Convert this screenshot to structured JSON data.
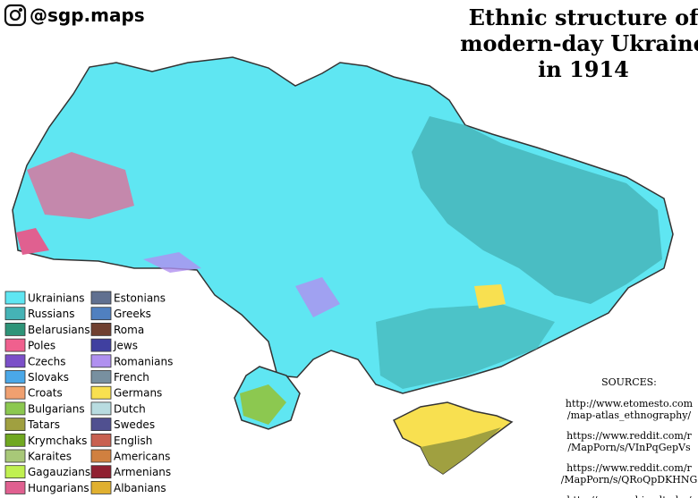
{
  "header": {
    "handle": "@sgp.maps",
    "title": [
      "Ethnic structure of",
      "modern-day Ukraine",
      "in 1914"
    ]
  },
  "legend": [
    {
      "name": "Ukrainians",
      "color": "#5fe6f2"
    },
    {
      "name": "Russians",
      "color": "#45b3b6"
    },
    {
      "name": "Belarusians",
      "color": "#2e9478"
    },
    {
      "name": "Poles",
      "color": "#f0608e"
    },
    {
      "name": "Czechs",
      "color": "#7b4fc8"
    },
    {
      "name": "Slovaks",
      "color": "#4aa8e8"
    },
    {
      "name": "Croats",
      "color": "#f0a070"
    },
    {
      "name": "Bulgarians",
      "color": "#8cc850"
    },
    {
      "name": "Tatars",
      "color": "#a0a040"
    },
    {
      "name": "Krymchaks",
      "color": "#70a820"
    },
    {
      "name": "Karaites",
      "color": "#a8c878"
    },
    {
      "name": "Gagauzians",
      "color": "#c0f050"
    },
    {
      "name": "Hungarians",
      "color": "#e06090"
    },
    {
      "name": "Estonians",
      "color": "#607090"
    },
    {
      "name": "Greeks",
      "color": "#5080c0"
    },
    {
      "name": "Roma",
      "color": "#704030"
    },
    {
      "name": "Jews",
      "color": "#4040a0"
    },
    {
      "name": "Romanians",
      "color": "#b090f0"
    },
    {
      "name": "French",
      "color": "#7890a0"
    },
    {
      "name": "Germans",
      "color": "#f8e050"
    },
    {
      "name": "Dutch",
      "color": "#b8dce0"
    },
    {
      "name": "Swedes",
      "color": "#505090"
    },
    {
      "name": "English",
      "color": "#c86050"
    },
    {
      "name": "Americans",
      "color": "#d08040"
    },
    {
      "name": "Armenians",
      "color": "#902030"
    },
    {
      "name": "Albanians",
      "color": "#e0b030"
    }
  ],
  "sources": {
    "heading": "SOURCES:",
    "items": [
      [
        "http://www.etomesto.com",
        "/map-atlas_ethnography/"
      ],
      [
        "https://www.reddit.com/r",
        "/MapPorn/s/VInPqGepVs"
      ],
      [
        "https://www.reddit.com/r",
        "/MapPorn/s/QRoQpDKHNG"
      ],
      [
        "http://monarchia.elte.hu/"
      ]
    ]
  }
}
